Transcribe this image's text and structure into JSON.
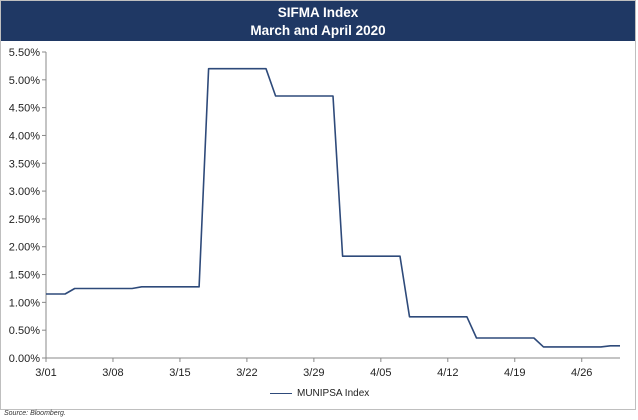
{
  "chart_data": {
    "type": "line",
    "title": "SIFMA Index",
    "subtitle": "March and April 2020",
    "xlabel": "",
    "ylabel": "",
    "x_ticks": [
      "3/01",
      "3/08",
      "3/15",
      "3/22",
      "3/29",
      "4/05",
      "4/12",
      "4/19",
      "4/26"
    ],
    "ylim": [
      0,
      5.5
    ],
    "y_ticks": [
      "0.00%",
      "0.50%",
      "1.00%",
      "1.50%",
      "2.00%",
      "2.50%",
      "3.00%",
      "3.50%",
      "4.00%",
      "4.50%",
      "5.00%",
      "5.50%"
    ],
    "grid": false,
    "legend_position": "bottom",
    "series": [
      {
        "name": "MUNIPSA Index",
        "color": "#2e4a7a",
        "x": [
          "2020-03-01",
          "2020-03-03",
          "2020-03-04",
          "2020-03-10",
          "2020-03-11",
          "2020-03-17",
          "2020-03-18",
          "2020-03-24",
          "2020-03-25",
          "2020-03-31",
          "2020-04-01",
          "2020-04-07",
          "2020-04-08",
          "2020-04-14",
          "2020-04-15",
          "2020-04-21",
          "2020-04-22",
          "2020-04-28",
          "2020-04-29",
          "2020-04-30"
        ],
        "y": [
          1.15,
          1.15,
          1.25,
          1.25,
          1.28,
          1.28,
          5.2,
          5.2,
          4.71,
          4.71,
          1.83,
          1.83,
          0.74,
          0.74,
          0.36,
          0.36,
          0.2,
          0.2,
          0.22,
          0.22
        ]
      }
    ]
  },
  "source_note": "Source: Bloomberg."
}
